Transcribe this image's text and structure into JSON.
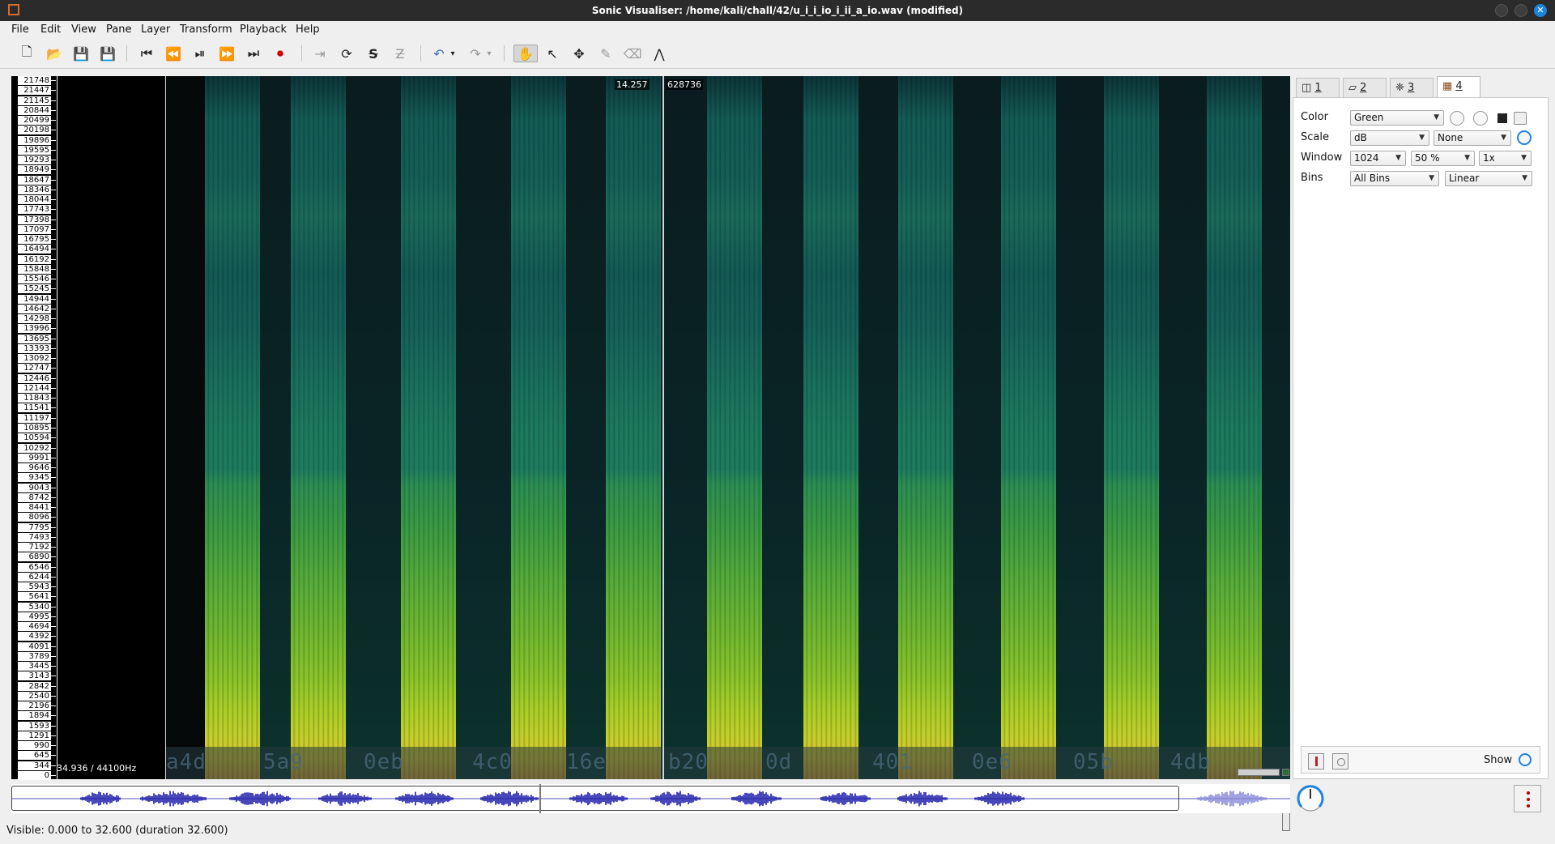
{
  "window": {
    "title": "Sonic Visualiser: /home/kali/chall/42/u_i_i_io_i_ii_a_io.wav (modified)",
    "close_glyph": "✕"
  },
  "menu": [
    "File",
    "Edit",
    "View",
    "Pane",
    "Layer",
    "Transform",
    "Playback",
    "Help"
  ],
  "toolbar": {
    "icons": [
      "new-file-icon",
      "open-file-icon",
      "save-icon",
      "save-as-icon",
      "rewind-start-icon",
      "rewind-icon",
      "play-pause-icon",
      "fast-forward-icon",
      "fast-forward-end-icon",
      "record-icon",
      "constrain-playback-icon",
      "loop-icon",
      "solo-icon",
      "playback-speed-icon",
      "undo-icon",
      "redo-icon",
      "navigate-tool-icon",
      "select-tool-icon",
      "edit-tool-icon",
      "draw-tool-icon",
      "erase-tool-icon",
      "measure-tool-icon"
    ],
    "glyphs": {
      "new": "🗋",
      "open": "📂",
      "save": "💾",
      "save_as": "💾",
      "rewind_start": "⏮",
      "rewind": "⏪",
      "play": "⏯",
      "ffwd": "⏩",
      "ffwd_end": "⏭",
      "record": "⏺",
      "constrain": "⇥",
      "loop": "⟳",
      "solo": "S",
      "speed": "Z",
      "undo": "↶",
      "redo": "↷",
      "caret": "▾",
      "navigate": "✋",
      "select": "↖",
      "move": "✥",
      "draw": "✎",
      "erase": "⌫",
      "measure": "⋀"
    }
  },
  "main_pane": {
    "freq_labels": [
      "21748",
      "21447",
      "21145",
      "20844",
      "20499",
      "20198",
      "19896",
      "19595",
      "19293",
      "18949",
      "18647",
      "18346",
      "18044",
      "17743",
      "17398",
      "17097",
      "16795",
      "16494",
      "16192",
      "15848",
      "15546",
      "15245",
      "14944",
      "14642",
      "14298",
      "13996",
      "13695",
      "13393",
      "13092",
      "12747",
      "12446",
      "12144",
      "11843",
      "11541",
      "11197",
      "10895",
      "10594",
      "10292",
      "9991",
      "9646",
      "9345",
      "9043",
      "8742",
      "8441",
      "8096",
      "7795",
      "7493",
      "7192",
      "6890",
      "6546",
      "6244",
      "5943",
      "5641",
      "5340",
      "4995",
      "4694",
      "4392",
      "4091",
      "3789",
      "3445",
      "3143",
      "2842",
      "2540",
      "2196",
      "1894",
      "1593",
      "1291",
      "990",
      "645",
      "344",
      "0"
    ],
    "rate_label": "34.936 / 44100Hz",
    "playhead_time": "14.257",
    "playhead_frame": "628736",
    "strip_text": [
      "a4d",
      "5a9",
      "0eb",
      "4c0",
      "16e",
      "b20",
      "0d",
      "401",
      "0e6",
      "05b",
      "4db"
    ],
    "spectrogram_colors": [
      "#0d3438",
      "#1c7a5d",
      "#56ac3a",
      "#a9ce28",
      "#d8c52e"
    ]
  },
  "right_panel": {
    "tabs": [
      "1",
      "2",
      "3",
      "4"
    ],
    "tab_icons": [
      "pane-icon",
      "waveform-layer-icon",
      "spectrum-layer-icon",
      "spectrogram-layer-icon"
    ],
    "properties": {
      "color_label": "Color",
      "color_value": "Green",
      "scale_label": "Scale",
      "scale_value": "dB",
      "normalize_value": "None",
      "window_label": "Window",
      "window_size": "1024",
      "window_overlap": "50 %",
      "window_oversample": "1x",
      "bins_label": "Bins",
      "bins_value": "All Bins",
      "bins_scale": "Linear"
    },
    "footer": {
      "show_label": "Show"
    }
  },
  "status": {
    "text": "Visible: 0.000 to 32.600 (duration 32.600)"
  }
}
